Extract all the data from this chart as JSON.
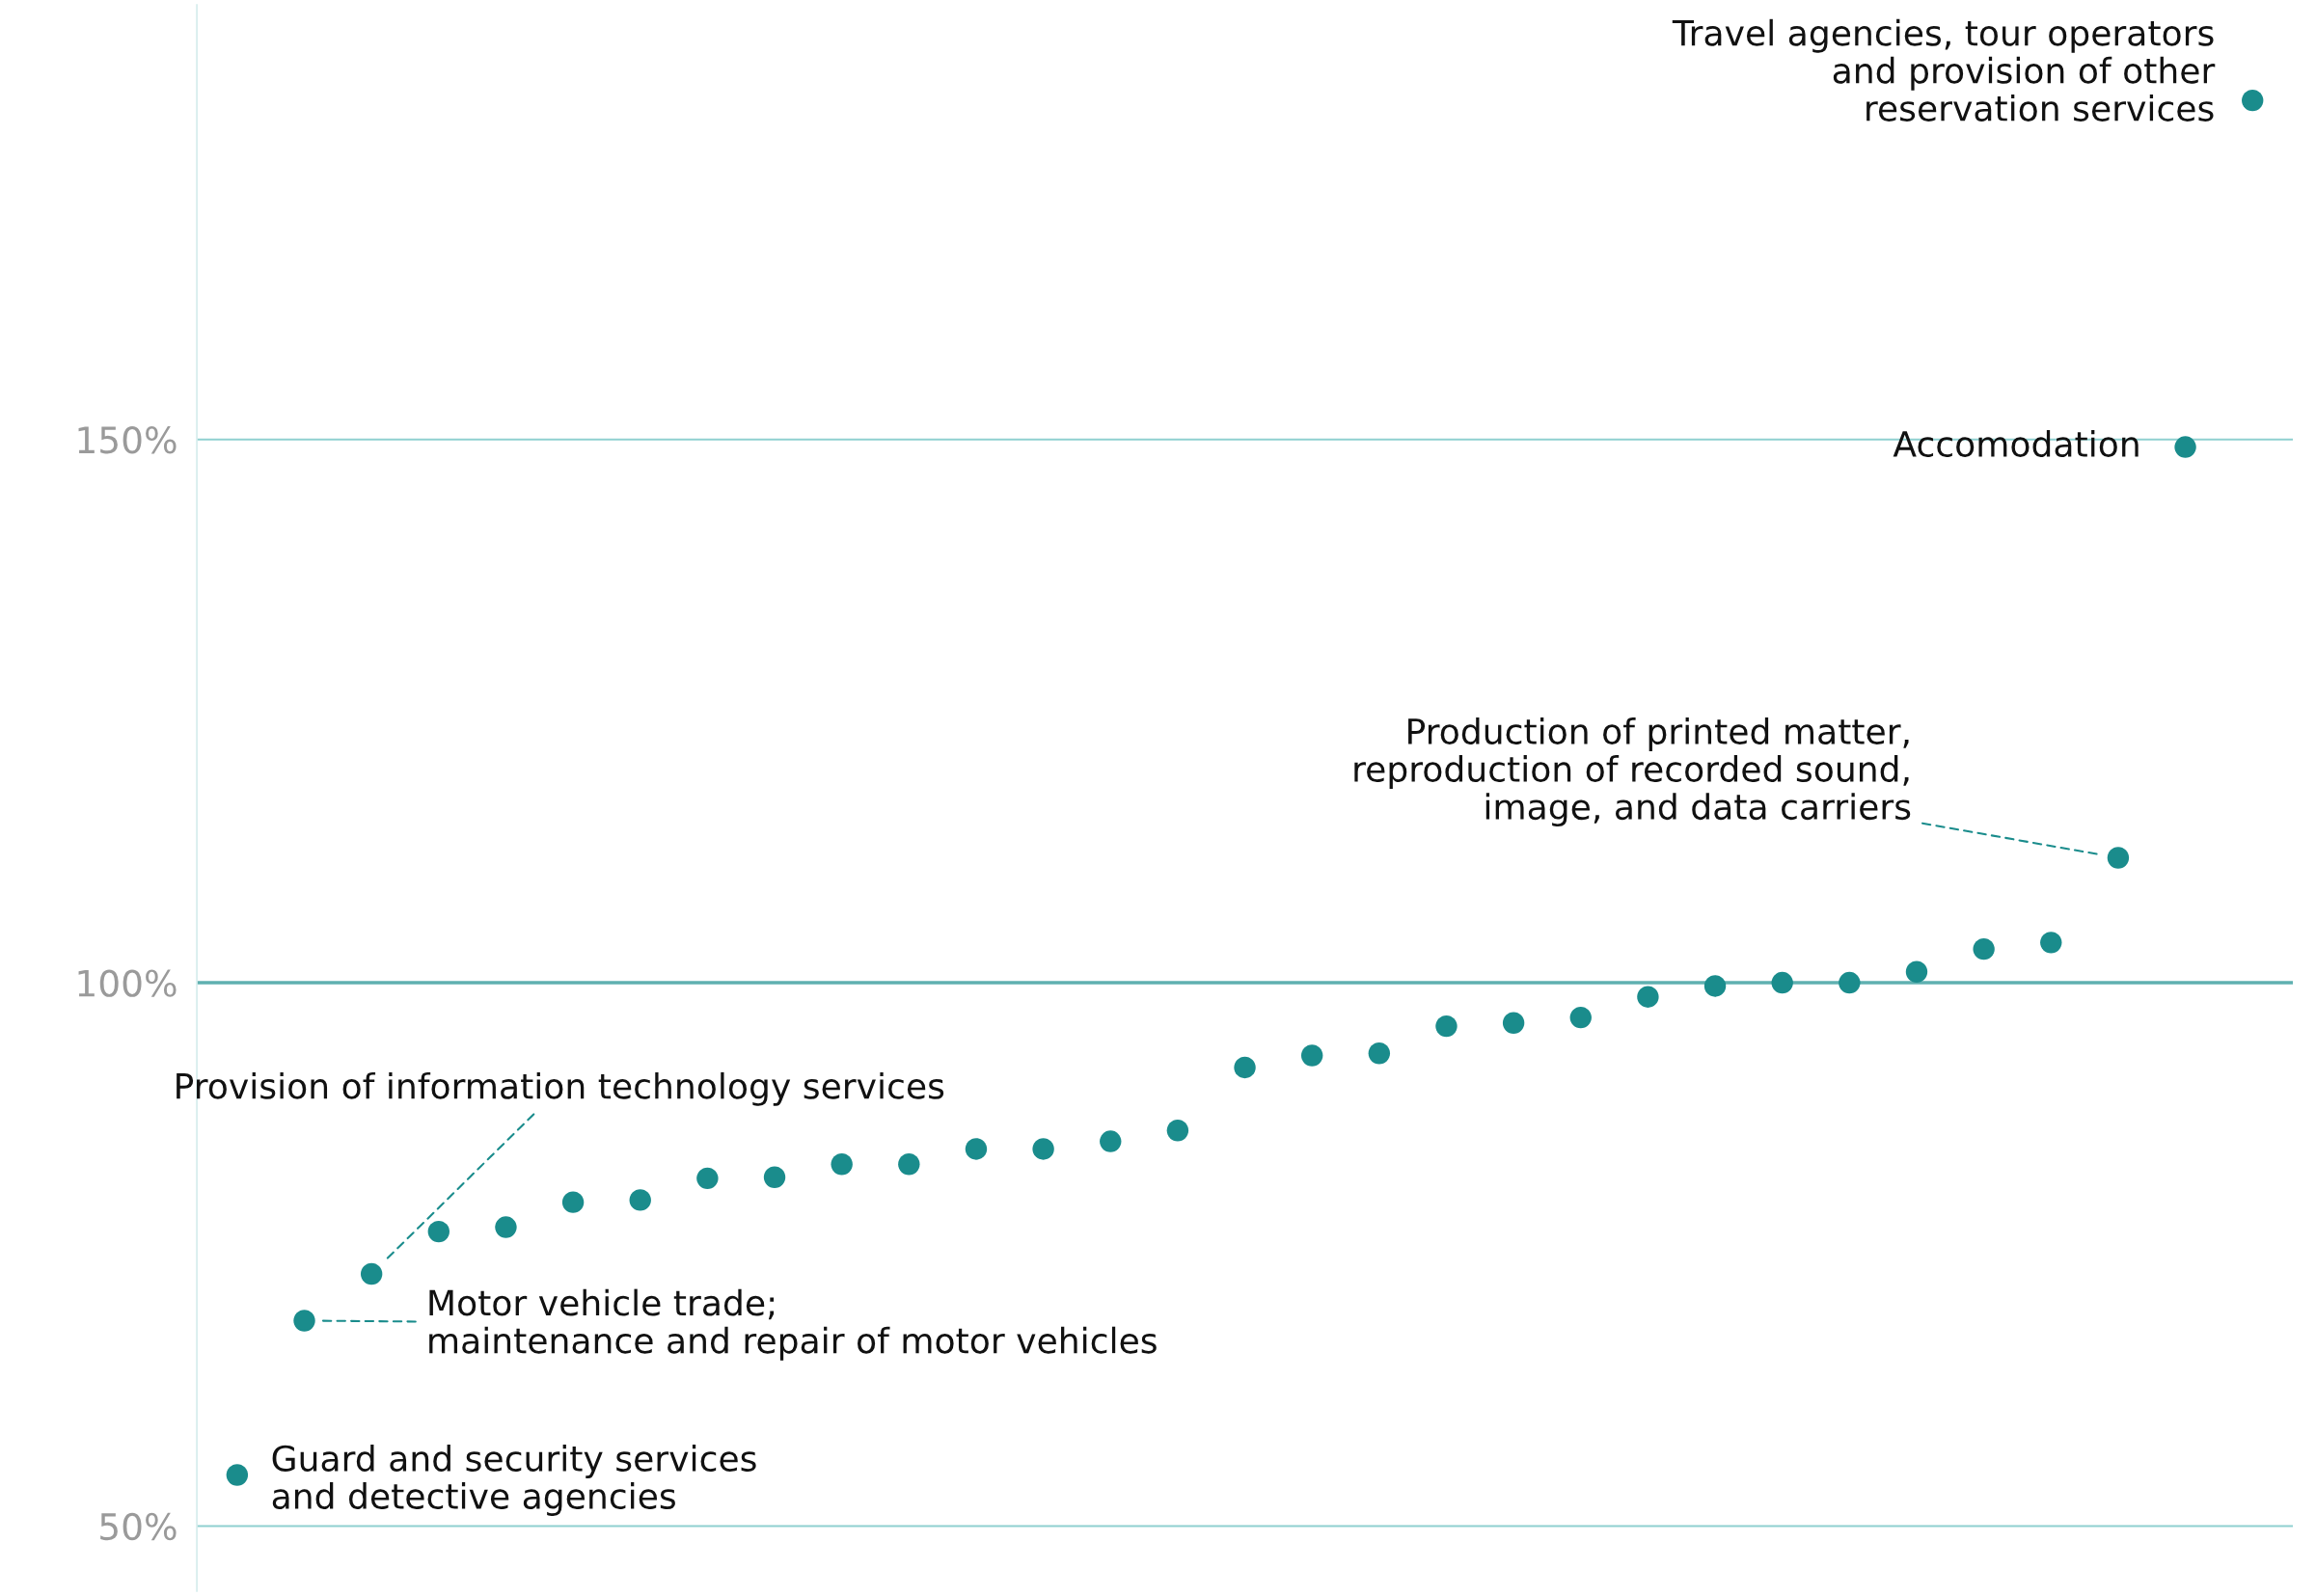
{
  "chart_data": {
    "type": "scatter",
    "color": "#1a8c8c",
    "marker": "circle",
    "categories": [
      null,
      null,
      null,
      null,
      null,
      null,
      null,
      null,
      null,
      null,
      null,
      null,
      null,
      null,
      null,
      null,
      null,
      null,
      null,
      null,
      null,
      null,
      null,
      null,
      null,
      null,
      null,
      null,
      null,
      null,
      null
    ],
    "values": [
      54.7,
      68.9,
      73.2,
      77.1,
      77.5,
      79.8,
      80.0,
      82.0,
      82.1,
      83.3,
      83.3,
      84.7,
      84.7,
      85.4,
      86.4,
      92.2,
      93.3,
      93.5,
      96.0,
      96.3,
      96.8,
      98.7,
      99.7,
      100,
      100,
      101,
      103.1,
      103.7,
      111.5,
      149.3,
      181.2
    ],
    "ylim": [
      44,
      190
    ],
    "yticks": [
      {
        "value": 50,
        "label": "50%"
      },
      {
        "value": 100,
        "label": "100%"
      },
      {
        "value": 150,
        "label": "150%"
      }
    ],
    "grid": "y",
    "ref_lines": [
      {
        "axis": "y",
        "value": 100,
        "color": "#5fb0b0"
      }
    ],
    "annotations": [
      "Guard and security services\nand detective agencies",
      "Motor vehicle trade;\nmaintenance and repair of motor vehicles",
      "Provision of information technology services",
      "Production of printed matter,\nreproduction of recorded sound,\nimage, and data carriers",
      "Accomodation",
      "Travel agencies, tour operators\nand provision of other\nreservation services"
    ]
  }
}
